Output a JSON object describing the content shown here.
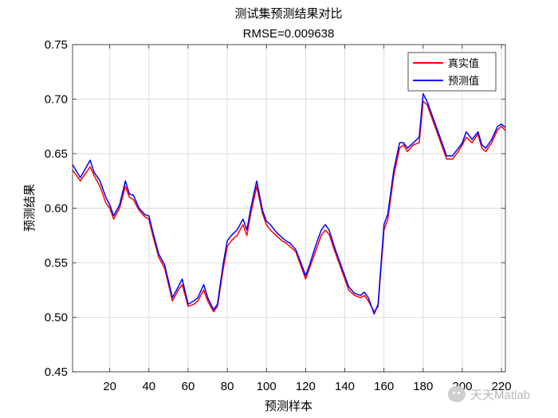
{
  "chart_data": {
    "type": "line",
    "title": "测试集预测结果对比",
    "subtitle": "RMSE=0.009638",
    "xlabel": "预测样本",
    "ylabel": "预测结果",
    "xlim": [
      1,
      222
    ],
    "ylim": [
      0.45,
      0.75
    ],
    "xticks": [
      20,
      40,
      60,
      80,
      100,
      120,
      140,
      160,
      180,
      200,
      220
    ],
    "yticks": [
      0.45,
      0.5,
      0.55,
      0.6,
      0.65,
      0.7,
      0.75
    ],
    "grid": true,
    "legend_position": "top-right",
    "x": [
      1,
      5,
      10,
      12,
      15,
      18,
      20,
      22,
      25,
      28,
      30,
      32,
      35,
      38,
      40,
      42,
      45,
      48,
      50,
      52,
      55,
      57,
      60,
      63,
      65,
      68,
      70,
      73,
      75,
      78,
      80,
      82,
      85,
      88,
      90,
      92,
      95,
      98,
      100,
      102,
      105,
      108,
      110,
      112,
      115,
      118,
      120,
      122,
      125,
      128,
      130,
      132,
      135,
      138,
      140,
      142,
      145,
      148,
      150,
      152,
      155,
      157,
      160,
      162,
      165,
      168,
      170,
      172,
      175,
      178,
      180,
      182,
      185,
      188,
      190,
      192,
      195,
      198,
      200,
      202,
      205,
      208,
      210,
      212,
      215,
      218,
      220,
      222
    ],
    "series": [
      {
        "name": "真实值",
        "color": "#ff0000",
        "values": [
          0.635,
          0.625,
          0.638,
          0.63,
          0.62,
          0.605,
          0.6,
          0.59,
          0.6,
          0.62,
          0.61,
          0.608,
          0.598,
          0.592,
          0.59,
          0.575,
          0.555,
          0.545,
          0.53,
          0.515,
          0.525,
          0.53,
          0.51,
          0.512,
          0.515,
          0.525,
          0.515,
          0.505,
          0.51,
          0.545,
          0.565,
          0.57,
          0.575,
          0.585,
          0.575,
          0.595,
          0.62,
          0.595,
          0.585,
          0.58,
          0.575,
          0.57,
          0.568,
          0.565,
          0.56,
          0.545,
          0.535,
          0.545,
          0.56,
          0.575,
          0.58,
          0.576,
          0.56,
          0.545,
          0.535,
          0.525,
          0.52,
          0.518,
          0.52,
          0.515,
          0.505,
          0.51,
          0.58,
          0.59,
          0.63,
          0.655,
          0.658,
          0.652,
          0.658,
          0.66,
          0.698,
          0.695,
          0.68,
          0.665,
          0.655,
          0.645,
          0.645,
          0.652,
          0.658,
          0.665,
          0.66,
          0.668,
          0.655,
          0.652,
          0.66,
          0.672,
          0.675,
          0.671
        ]
      },
      {
        "name": "预测值",
        "color": "#0000ff",
        "values": [
          0.64,
          0.628,
          0.644,
          0.633,
          0.625,
          0.61,
          0.603,
          0.593,
          0.603,
          0.625,
          0.613,
          0.612,
          0.6,
          0.594,
          0.593,
          0.578,
          0.558,
          0.548,
          0.533,
          0.518,
          0.528,
          0.535,
          0.512,
          0.515,
          0.518,
          0.53,
          0.518,
          0.507,
          0.512,
          0.55,
          0.57,
          0.575,
          0.58,
          0.59,
          0.58,
          0.6,
          0.625,
          0.598,
          0.588,
          0.585,
          0.578,
          0.573,
          0.57,
          0.568,
          0.562,
          0.548,
          0.538,
          0.548,
          0.565,
          0.58,
          0.585,
          0.58,
          0.563,
          0.548,
          0.538,
          0.528,
          0.522,
          0.52,
          0.523,
          0.518,
          0.503,
          0.512,
          0.585,
          0.595,
          0.635,
          0.66,
          0.66,
          0.655,
          0.66,
          0.665,
          0.705,
          0.698,
          0.683,
          0.668,
          0.658,
          0.648,
          0.648,
          0.655,
          0.66,
          0.67,
          0.663,
          0.67,
          0.658,
          0.655,
          0.663,
          0.675,
          0.677,
          0.674
        ]
      }
    ]
  },
  "watermark": {
    "text": "天天Matlab"
  }
}
